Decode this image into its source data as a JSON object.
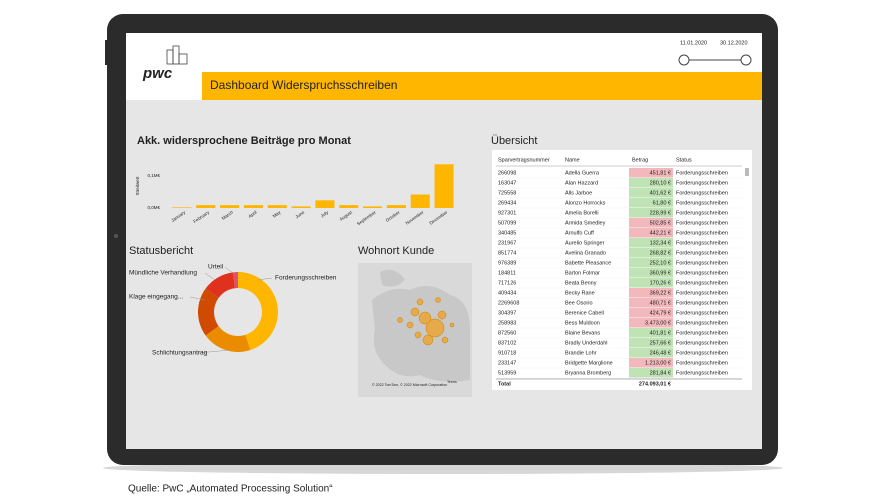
{
  "header": {
    "logo": "pwc",
    "title": "Dashboard Widerspruchsschreiben",
    "date_from": "11.01.2020",
    "date_to": "30.12.2020"
  },
  "bar_chart": {
    "type": "bar",
    "title": "Akk. widersprochene Beiträge pro Monat",
    "y_label": "Streitwert",
    "categories": [
      "January",
      "February",
      "March",
      "April",
      "May",
      "June",
      "July",
      "August",
      "September",
      "October",
      "November",
      "December"
    ],
    "values": [
      0.002,
      0.009,
      0.009,
      0.009,
      0.009,
      0.005,
      0.024,
      0.009,
      0.005,
      0.009,
      0.042,
      0.136
    ],
    "color": "#ffb600",
    "ylim": [
      0,
      0.14
    ],
    "yticks": [
      {
        "value": 0,
        "label": "0,0M€"
      },
      {
        "value": 0.1,
        "label": "0,1M€"
      }
    ]
  },
  "donut": {
    "type": "pie",
    "title": "Statusbericht",
    "categories": [
      "Forderungsschreiben",
      "Schlichtungsantrag",
      "Klage eingegang...",
      "Mündliche Verhandlung",
      "Urteil"
    ],
    "values": [
      45,
      20,
      20,
      13,
      2
    ],
    "colors": [
      "#ffb600",
      "#eb8c00",
      "#d04a02",
      "#e0301e",
      "#db536a"
    ]
  },
  "map": {
    "title": "Wohnort Kunde",
    "attribution": "© 2022 TomTom, © 2022 Microsoft Corporation",
    "terms": "Terms"
  },
  "table": {
    "title": "Übersicht",
    "columns": [
      "Sparvertragsnummer",
      "Name",
      "Betrag",
      "Status"
    ],
    "rows": [
      [
        "266098",
        "Adella Guerra",
        "451,81 €",
        "Forderungsschreiben"
      ],
      [
        "163047",
        "Alan Hazzard",
        "280,10 €",
        "Forderungsschreiben"
      ],
      [
        "725558",
        "Alls Jarboe",
        "401,62 €",
        "Forderungsschreiben"
      ],
      [
        "269434",
        "Alonzo Horrocks",
        "61,80 €",
        "Forderungsschreiben"
      ],
      [
        "927301",
        "Amelia Borelli",
        "228,99 €",
        "Forderungsschreiben"
      ],
      [
        "507099",
        "Armida Smedley",
        "502,85 €",
        "Forderungsschreiben"
      ],
      [
        "340485",
        "Arnulfo Cuff",
        "442,21 €",
        "Forderungsschreiben"
      ],
      [
        "231967",
        "Aurelio Springer",
        "132,34 €",
        "Forderungsschreiben"
      ],
      [
        "851774",
        "Avelina Granado",
        "268,82 €",
        "Forderungsschreiben"
      ],
      [
        "976389",
        "Babette Pleasance",
        "252,10 €",
        "Forderungsschreiben"
      ],
      [
        "184811",
        "Barton Folmar",
        "360,99 €",
        "Forderungsschreiben"
      ],
      [
        "717126",
        "Beata Benny",
        "170,26 €",
        "Forderungsschreiben"
      ],
      [
        "409434",
        "Becky Rane",
        "369,22 €",
        "Forderungsschreiben"
      ],
      [
        "2269608",
        "Bee Osorio",
        "480,71 €",
        "Forderungsschreiben"
      ],
      [
        "304397",
        "Berenice Cabell",
        "424,79 €",
        "Forderungsschreiben"
      ],
      [
        "258983",
        "Bess Muldoon",
        "3.473,00 €",
        "Forderungsschreiben"
      ],
      [
        "872560",
        "Blaine Bevans",
        "401,81 €",
        "Forderungsschreiben"
      ],
      [
        "837102",
        "Bradly Underdahl",
        "257,66 €",
        "Forderungsschreiben"
      ],
      [
        "910718",
        "Brandie Lohr",
        "246,48 €",
        "Forderungsschreiben"
      ],
      [
        "233147",
        "Bridgette Marglione",
        "1.213,00 €",
        "Forderungsschreiben"
      ],
      [
        "513959",
        "Bryanna Bromberg",
        "281,84 €",
        "Forderungsschreiben"
      ]
    ],
    "betrag_colors": [
      "#f2b8bc",
      "#bfe3b4",
      "#bfe3b4",
      "#bfe3b4",
      "#bfe3b4",
      "#f2b8bc",
      "#f2b8bc",
      "#bfe3b4",
      "#bfe3b4",
      "#bfe3b4",
      "#bfe3b4",
      "#bfe3b4",
      "#f2b8bc",
      "#f2b8bc",
      "#f2b8bc",
      "#f2b8bc",
      "#bfe3b4",
      "#bfe3b4",
      "#bfe3b4",
      "#f2b8bc",
      "#bfe3b4"
    ],
    "total_label": "Total",
    "total": "274.093,01 €"
  },
  "caption": "Quelle: PwC „Automated Processing Solution“"
}
